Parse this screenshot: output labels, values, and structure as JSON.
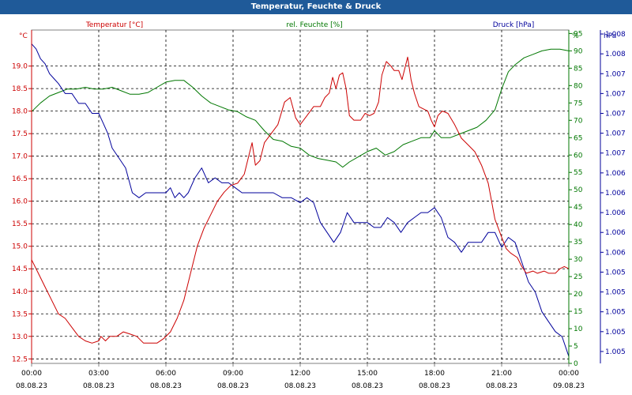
{
  "window": {
    "title": "Temperatur, Feuchte & Druck"
  },
  "colors": {
    "temperature": "#cc0000",
    "humidity": "#007700",
    "pressure": "#00009b",
    "grid": "#000000",
    "axis": "#808080"
  },
  "chart_data": {
    "type": "line",
    "title": "Temperatur, Feuchte & Druck",
    "grid": true,
    "x_ticks": [
      {
        "h": 0,
        "time": "00:00",
        "date": "08.08.23"
      },
      {
        "h": 3,
        "time": "03:00",
        "date": "08.08.23"
      },
      {
        "h": 6,
        "time": "06:00",
        "date": "08.08.23"
      },
      {
        "h": 9,
        "time": "09:00",
        "date": "08.08.23"
      },
      {
        "h": 12,
        "time": "12:00",
        "date": "08.08.23"
      },
      {
        "h": 15,
        "time": "15:00",
        "date": "08.08.23"
      },
      {
        "h": 18,
        "time": "18:00",
        "date": "08.08.23"
      },
      {
        "h": 21,
        "time": "21:00",
        "date": "08.08.23"
      },
      {
        "h": 24,
        "time": "00:00",
        "date": "09.08.23"
      }
    ],
    "x_range": [
      0,
      24
    ],
    "axes": {
      "temperature": {
        "label": "Temperatur [°C]",
        "unit": "°C",
        "range": [
          12.4,
          19.8
        ],
        "ticks": [
          "12.5",
          "13.0",
          "13.5",
          "14.0",
          "14.5",
          "15.0",
          "15.5",
          "16.0",
          "16.5",
          "17.0",
          "17.5",
          "18.0",
          "18.5",
          "19.0"
        ]
      },
      "humidity": {
        "label": "rel. Feuchte [%]",
        "unit": "%",
        "range": [
          0,
          96
        ],
        "ticks": [
          "0",
          "5",
          "10",
          "15",
          "20",
          "25",
          "30",
          "35",
          "40",
          "45",
          "50",
          "55",
          "60",
          "65",
          "70",
          "75",
          "80",
          "85",
          "90",
          "95"
        ]
      },
      "pressure": {
        "label": "Druck [hPa]",
        "unit": "hPa",
        "range": [
          1004.88,
          1008.24
        ],
        "ticks": [
          {
            "v": 1005.0,
            "t": "1.005"
          },
          {
            "v": 1005.2,
            "t": "1.005"
          },
          {
            "v": 1005.4,
            "t": "1.005"
          },
          {
            "v": 1005.6,
            "t": "1.005"
          },
          {
            "v": 1005.8,
            "t": "1.005"
          },
          {
            "v": 1006.0,
            "t": "1.006"
          },
          {
            "v": 1006.2,
            "t": "1.006"
          },
          {
            "v": 1006.4,
            "t": "1.006"
          },
          {
            "v": 1006.6,
            "t": "1.006"
          },
          {
            "v": 1006.8,
            "t": "1.006"
          },
          {
            "v": 1007.0,
            "t": "1.007"
          },
          {
            "v": 1007.2,
            "t": "1.007"
          },
          {
            "v": 1007.4,
            "t": "1.007"
          },
          {
            "v": 1007.6,
            "t": "1.007"
          },
          {
            "v": 1007.8,
            "t": "1.007"
          },
          {
            "v": 1008.0,
            "t": "1.008"
          },
          {
            "v": 1008.2,
            "t": "1.008"
          }
        ]
      }
    },
    "series": [
      {
        "name": "Temperatur [°C]",
        "axis": "temperature",
        "points": [
          [
            0,
            14.7
          ],
          [
            0.3,
            14.4
          ],
          [
            0.6,
            14.1
          ],
          [
            0.9,
            13.8
          ],
          [
            1.2,
            13.5
          ],
          [
            1.5,
            13.4
          ],
          [
            1.8,
            13.2
          ],
          [
            2.1,
            13.0
          ],
          [
            2.4,
            12.9
          ],
          [
            2.7,
            12.85
          ],
          [
            3.0,
            12.9
          ],
          [
            3.1,
            13.0
          ],
          [
            3.3,
            12.9
          ],
          [
            3.5,
            13.0
          ],
          [
            3.8,
            13.0
          ],
          [
            4.1,
            13.1
          ],
          [
            4.4,
            13.05
          ],
          [
            4.7,
            13.0
          ],
          [
            5.0,
            12.85
          ],
          [
            5.3,
            12.85
          ],
          [
            5.6,
            12.85
          ],
          [
            5.9,
            12.95
          ],
          [
            6.2,
            13.1
          ],
          [
            6.5,
            13.4
          ],
          [
            6.8,
            13.8
          ],
          [
            7.1,
            14.4
          ],
          [
            7.4,
            15.0
          ],
          [
            7.7,
            15.4
          ],
          [
            8.0,
            15.7
          ],
          [
            8.3,
            16.0
          ],
          [
            8.6,
            16.2
          ],
          [
            8.9,
            16.35
          ],
          [
            9.2,
            16.4
          ],
          [
            9.5,
            16.6
          ],
          [
            9.7,
            17.0
          ],
          [
            9.85,
            17.3
          ],
          [
            10.0,
            16.8
          ],
          [
            10.2,
            16.9
          ],
          [
            10.4,
            17.3
          ],
          [
            10.7,
            17.5
          ],
          [
            11.0,
            17.7
          ],
          [
            11.3,
            18.2
          ],
          [
            11.55,
            18.3
          ],
          [
            11.8,
            17.85
          ],
          [
            12.0,
            17.7
          ],
          [
            12.3,
            17.9
          ],
          [
            12.6,
            18.1
          ],
          [
            12.9,
            18.1
          ],
          [
            13.1,
            18.3
          ],
          [
            13.3,
            18.4
          ],
          [
            13.45,
            18.75
          ],
          [
            13.6,
            18.5
          ],
          [
            13.75,
            18.8
          ],
          [
            13.9,
            18.85
          ],
          [
            14.05,
            18.5
          ],
          [
            14.2,
            17.9
          ],
          [
            14.4,
            17.8
          ],
          [
            14.7,
            17.8
          ],
          [
            14.9,
            17.95
          ],
          [
            15.1,
            17.9
          ],
          [
            15.3,
            17.95
          ],
          [
            15.5,
            18.2
          ],
          [
            15.65,
            18.8
          ],
          [
            15.85,
            19.1
          ],
          [
            16.05,
            19.0
          ],
          [
            16.2,
            18.9
          ],
          [
            16.4,
            18.9
          ],
          [
            16.55,
            18.7
          ],
          [
            16.7,
            19.0
          ],
          [
            16.8,
            19.2
          ],
          [
            16.95,
            18.7
          ],
          [
            17.1,
            18.4
          ],
          [
            17.3,
            18.1
          ],
          [
            17.5,
            18.05
          ],
          [
            17.7,
            18.0
          ],
          [
            17.85,
            17.8
          ],
          [
            18.0,
            17.65
          ],
          [
            18.15,
            17.9
          ],
          [
            18.35,
            18.0
          ],
          [
            18.6,
            17.95
          ],
          [
            18.9,
            17.7
          ],
          [
            19.2,
            17.4
          ],
          [
            19.5,
            17.25
          ],
          [
            19.8,
            17.1
          ],
          [
            20.1,
            16.8
          ],
          [
            20.4,
            16.4
          ],
          [
            20.7,
            15.6
          ],
          [
            20.85,
            15.4
          ],
          [
            21.0,
            15.2
          ],
          [
            21.2,
            14.95
          ],
          [
            21.4,
            14.85
          ],
          [
            21.7,
            14.75
          ],
          [
            21.9,
            14.55
          ],
          [
            22.1,
            14.4
          ],
          [
            22.4,
            14.45
          ],
          [
            22.6,
            14.4
          ],
          [
            22.9,
            14.45
          ],
          [
            23.1,
            14.4
          ],
          [
            23.4,
            14.4
          ],
          [
            23.6,
            14.5
          ],
          [
            23.8,
            14.55
          ],
          [
            24.0,
            14.5
          ]
        ]
      },
      {
        "name": "rel. Feuchte [%]",
        "axis": "humidity",
        "points": [
          [
            0,
            72.5
          ],
          [
            0.4,
            75
          ],
          [
            0.8,
            77
          ],
          [
            1.2,
            78
          ],
          [
            1.6,
            79
          ],
          [
            2.0,
            79
          ],
          [
            2.4,
            79.5
          ],
          [
            2.8,
            79
          ],
          [
            3.2,
            79
          ],
          [
            3.6,
            79.5
          ],
          [
            4.0,
            78.5
          ],
          [
            4.4,
            77.5
          ],
          [
            4.8,
            77.5
          ],
          [
            5.2,
            78
          ],
          [
            5.6,
            79.5
          ],
          [
            6.0,
            81
          ],
          [
            6.4,
            81.5
          ],
          [
            6.8,
            81.5
          ],
          [
            7.2,
            79.5
          ],
          [
            7.6,
            77
          ],
          [
            8.0,
            75
          ],
          [
            8.4,
            74
          ],
          [
            8.8,
            73
          ],
          [
            9.2,
            72.5
          ],
          [
            9.6,
            71
          ],
          [
            10.0,
            70
          ],
          [
            10.4,
            67
          ],
          [
            10.8,
            64.5
          ],
          [
            11.2,
            64
          ],
          [
            11.6,
            62.5
          ],
          [
            12.0,
            62
          ],
          [
            12.4,
            60
          ],
          [
            12.8,
            59
          ],
          [
            13.2,
            58.5
          ],
          [
            13.6,
            58
          ],
          [
            13.9,
            56.5
          ],
          [
            14.2,
            58
          ],
          [
            14.6,
            59.5
          ],
          [
            15.0,
            61
          ],
          [
            15.4,
            62
          ],
          [
            15.8,
            60
          ],
          [
            16.2,
            61
          ],
          [
            16.6,
            63
          ],
          [
            17.0,
            64
          ],
          [
            17.4,
            65
          ],
          [
            17.8,
            65
          ],
          [
            18.0,
            67
          ],
          [
            18.3,
            65
          ],
          [
            18.7,
            65
          ],
          [
            19.1,
            66
          ],
          [
            19.5,
            67
          ],
          [
            19.9,
            68
          ],
          [
            20.3,
            70
          ],
          [
            20.7,
            73
          ],
          [
            21.0,
            79
          ],
          [
            21.3,
            84
          ],
          [
            21.6,
            86
          ],
          [
            22.0,
            88
          ],
          [
            22.4,
            89
          ],
          [
            22.8,
            90
          ],
          [
            23.2,
            90.5
          ],
          [
            23.6,
            90.5
          ],
          [
            24.0,
            90
          ]
        ]
      },
      {
        "name": "Druck [hPa]",
        "axis": "pressure",
        "points": [
          [
            0,
            1008.1
          ],
          [
            0.2,
            1008.05
          ],
          [
            0.4,
            1007.95
          ],
          [
            0.6,
            1007.9
          ],
          [
            0.8,
            1007.8
          ],
          [
            1.0,
            1007.75
          ],
          [
            1.2,
            1007.7
          ],
          [
            1.5,
            1007.6
          ],
          [
            1.8,
            1007.6
          ],
          [
            2.1,
            1007.5
          ],
          [
            2.4,
            1007.5
          ],
          [
            2.7,
            1007.4
          ],
          [
            3.0,
            1007.4
          ],
          [
            3.2,
            1007.3
          ],
          [
            3.4,
            1007.2
          ],
          [
            3.6,
            1007.05
          ],
          [
            3.9,
            1006.95
          ],
          [
            4.2,
            1006.85
          ],
          [
            4.5,
            1006.6
          ],
          [
            4.8,
            1006.55
          ],
          [
            5.1,
            1006.6
          ],
          [
            5.4,
            1006.6
          ],
          [
            5.7,
            1006.6
          ],
          [
            6.0,
            1006.6
          ],
          [
            6.2,
            1006.65
          ],
          [
            6.4,
            1006.55
          ],
          [
            6.6,
            1006.6
          ],
          [
            6.8,
            1006.55
          ],
          [
            7.0,
            1006.6
          ],
          [
            7.3,
            1006.75
          ],
          [
            7.6,
            1006.85
          ],
          [
            7.9,
            1006.7
          ],
          [
            8.2,
            1006.75
          ],
          [
            8.5,
            1006.7
          ],
          [
            8.8,
            1006.7
          ],
          [
            9.1,
            1006.65
          ],
          [
            9.4,
            1006.6
          ],
          [
            9.7,
            1006.6
          ],
          [
            10.0,
            1006.6
          ],
          [
            10.4,
            1006.6
          ],
          [
            10.8,
            1006.6
          ],
          [
            11.2,
            1006.55
          ],
          [
            11.6,
            1006.55
          ],
          [
            12.0,
            1006.5
          ],
          [
            12.3,
            1006.55
          ],
          [
            12.6,
            1006.5
          ],
          [
            12.9,
            1006.3
          ],
          [
            13.2,
            1006.2
          ],
          [
            13.5,
            1006.1
          ],
          [
            13.8,
            1006.2
          ],
          [
            14.1,
            1006.4
          ],
          [
            14.4,
            1006.3
          ],
          [
            14.7,
            1006.3
          ],
          [
            15.0,
            1006.3
          ],
          [
            15.3,
            1006.25
          ],
          [
            15.6,
            1006.25
          ],
          [
            15.9,
            1006.35
          ],
          [
            16.2,
            1006.3
          ],
          [
            16.5,
            1006.2
          ],
          [
            16.8,
            1006.3
          ],
          [
            17.1,
            1006.35
          ],
          [
            17.4,
            1006.4
          ],
          [
            17.7,
            1006.4
          ],
          [
            18.0,
            1006.45
          ],
          [
            18.3,
            1006.35
          ],
          [
            18.6,
            1006.15
          ],
          [
            18.9,
            1006.1
          ],
          [
            19.2,
            1006.0
          ],
          [
            19.5,
            1006.1
          ],
          [
            19.8,
            1006.1
          ],
          [
            20.1,
            1006.1
          ],
          [
            20.4,
            1006.2
          ],
          [
            20.7,
            1006.2
          ],
          [
            21.0,
            1006.05
          ],
          [
            21.3,
            1006.15
          ],
          [
            21.6,
            1006.1
          ],
          [
            21.9,
            1005.9
          ],
          [
            22.2,
            1005.7
          ],
          [
            22.5,
            1005.6
          ],
          [
            22.8,
            1005.4
          ],
          [
            23.1,
            1005.3
          ],
          [
            23.4,
            1005.2
          ],
          [
            23.7,
            1005.15
          ],
          [
            24.0,
            1004.95
          ]
        ]
      }
    ]
  }
}
